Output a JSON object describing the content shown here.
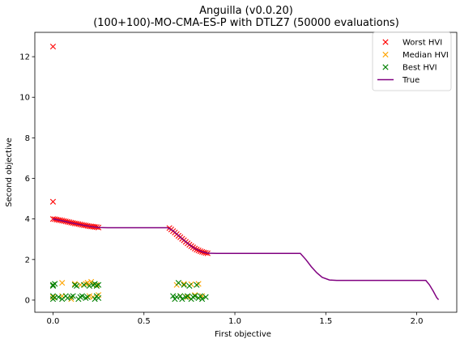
{
  "chart_data": {
    "type": "scatter",
    "title": "Anguilla (v0.0.20)",
    "subtitle": "(100+100)-MO-CMA-ES-P with DTLZ7 (50000 evaluations)",
    "xlabel": "First objective",
    "ylabel": "Second objective",
    "xlim": [
      -0.1,
      2.22
    ],
    "ylim": [
      -0.6,
      13.2
    ],
    "xticks": [
      0.0,
      0.5,
      1.0,
      1.5,
      2.0
    ],
    "xtick_labels": [
      "0.0",
      "0.5",
      "1.0",
      "1.5",
      "2.0"
    ],
    "yticks": [
      0,
      2,
      4,
      6,
      8,
      10,
      12
    ],
    "ytick_labels": [
      "0",
      "2",
      "4",
      "6",
      "8",
      "10",
      "12"
    ],
    "grid": false,
    "legend_position": "top-right",
    "series": [
      {
        "name": "Worst HVI",
        "color": "#ff0000",
        "marker": "x",
        "points": [
          [
            0.0,
            12.5
          ],
          [
            0.0,
            4.85
          ],
          [
            0.0,
            4.0
          ],
          [
            0.01,
            3.99
          ],
          [
            0.02,
            3.97
          ],
          [
            0.03,
            3.95
          ],
          [
            0.04,
            3.94
          ],
          [
            0.05,
            3.92
          ],
          [
            0.06,
            3.9
          ],
          [
            0.07,
            3.88
          ],
          [
            0.08,
            3.86
          ],
          [
            0.09,
            3.84
          ],
          [
            0.1,
            3.82
          ],
          [
            0.11,
            3.8
          ],
          [
            0.12,
            3.78
          ],
          [
            0.13,
            3.77
          ],
          [
            0.14,
            3.75
          ],
          [
            0.15,
            3.73
          ],
          [
            0.16,
            3.71
          ],
          [
            0.17,
            3.69
          ],
          [
            0.18,
            3.68
          ],
          [
            0.19,
            3.66
          ],
          [
            0.2,
            3.64
          ],
          [
            0.21,
            3.63
          ],
          [
            0.22,
            3.62
          ],
          [
            0.23,
            3.61
          ],
          [
            0.24,
            3.6
          ],
          [
            0.25,
            3.58
          ],
          [
            0.64,
            3.55
          ],
          [
            0.65,
            3.48
          ],
          [
            0.66,
            3.4
          ],
          [
            0.67,
            3.33
          ],
          [
            0.68,
            3.25
          ],
          [
            0.69,
            3.17
          ],
          [
            0.7,
            3.1
          ],
          [
            0.71,
            3.02
          ],
          [
            0.72,
            2.95
          ],
          [
            0.73,
            2.87
          ],
          [
            0.74,
            2.8
          ],
          [
            0.75,
            2.73
          ],
          [
            0.76,
            2.66
          ],
          [
            0.77,
            2.6
          ],
          [
            0.78,
            2.54
          ],
          [
            0.79,
            2.49
          ],
          [
            0.8,
            2.45
          ],
          [
            0.81,
            2.41
          ],
          [
            0.82,
            2.38
          ],
          [
            0.83,
            2.35
          ],
          [
            0.84,
            2.33
          ],
          [
            0.85,
            2.31
          ]
        ]
      },
      {
        "name": "Median HVI",
        "color": "#ffa500",
        "marker": "x",
        "points": [
          [
            0.0,
            0.75
          ],
          [
            0.0,
            0.15
          ],
          [
            0.05,
            0.85
          ],
          [
            0.05,
            0.2
          ],
          [
            0.1,
            0.05
          ],
          [
            0.12,
            0.8
          ],
          [
            0.15,
            0.75
          ],
          [
            0.18,
            0.8
          ],
          [
            0.19,
            0.85
          ],
          [
            0.2,
            0.2
          ],
          [
            0.21,
            0.9
          ],
          [
            0.22,
            0.15
          ],
          [
            0.24,
            0.75
          ],
          [
            0.25,
            0.25
          ],
          [
            0.68,
            0.75
          ],
          [
            0.7,
            0.2
          ],
          [
            0.72,
            0.8
          ],
          [
            0.74,
            0.15
          ],
          [
            0.76,
            0.78
          ],
          [
            0.78,
            0.25
          ],
          [
            0.8,
            0.8
          ],
          [
            0.82,
            0.2
          ]
        ]
      },
      {
        "name": "Best HVI",
        "color": "#008000",
        "marker": "x",
        "points": [
          [
            0.0,
            0.7
          ],
          [
            0.0,
            0.75
          ],
          [
            0.01,
            0.8
          ],
          [
            0.0,
            0.2
          ],
          [
            0.0,
            0.05
          ],
          [
            0.01,
            0.12
          ],
          [
            0.03,
            0.15
          ],
          [
            0.05,
            0.05
          ],
          [
            0.07,
            0.2
          ],
          [
            0.08,
            0.1
          ],
          [
            0.1,
            0.15
          ],
          [
            0.11,
            0.2
          ],
          [
            0.12,
            0.75
          ],
          [
            0.13,
            0.7
          ],
          [
            0.14,
            0.05
          ],
          [
            0.15,
            0.15
          ],
          [
            0.16,
            0.2
          ],
          [
            0.17,
            0.75
          ],
          [
            0.18,
            0.1
          ],
          [
            0.19,
            0.15
          ],
          [
            0.2,
            0.7
          ],
          [
            0.22,
            0.75
          ],
          [
            0.23,
            0.05
          ],
          [
            0.23,
            0.8
          ],
          [
            0.24,
            0.2
          ],
          [
            0.24,
            0.7
          ],
          [
            0.25,
            0.75
          ],
          [
            0.25,
            0.1
          ],
          [
            0.66,
            0.2
          ],
          [
            0.67,
            0.05
          ],
          [
            0.68,
            0.15
          ],
          [
            0.69,
            0.85
          ],
          [
            0.7,
            0.2
          ],
          [
            0.71,
            0.05
          ],
          [
            0.72,
            0.75
          ],
          [
            0.73,
            0.15
          ],
          [
            0.74,
            0.2
          ],
          [
            0.75,
            0.7
          ],
          [
            0.76,
            0.05
          ],
          [
            0.77,
            0.15
          ],
          [
            0.78,
            0.2
          ],
          [
            0.79,
            0.75
          ],
          [
            0.8,
            0.1
          ],
          [
            0.81,
            0.2
          ],
          [
            0.82,
            0.05
          ],
          [
            0.84,
            0.15
          ]
        ]
      },
      {
        "name": "True",
        "color": "#800080",
        "marker": "line",
        "points": [
          [
            0.0,
            4.0
          ],
          [
            0.05,
            3.91
          ],
          [
            0.1,
            3.81
          ],
          [
            0.15,
            3.72
          ],
          [
            0.2,
            3.64
          ],
          [
            0.25,
            3.58
          ],
          [
            0.3,
            3.57
          ],
          [
            0.4,
            3.57
          ],
          [
            0.5,
            3.57
          ],
          [
            0.6,
            3.57
          ],
          [
            0.63,
            3.57
          ],
          [
            0.66,
            3.42
          ],
          [
            0.7,
            3.1
          ],
          [
            0.74,
            2.8
          ],
          [
            0.78,
            2.54
          ],
          [
            0.82,
            2.38
          ],
          [
            0.85,
            2.31
          ],
          [
            0.9,
            2.3
          ],
          [
            1.0,
            2.3
          ],
          [
            1.2,
            2.3
          ],
          [
            1.36,
            2.3
          ],
          [
            1.39,
            2.0
          ],
          [
            1.42,
            1.65
          ],
          [
            1.45,
            1.35
          ],
          [
            1.48,
            1.12
          ],
          [
            1.52,
            0.99
          ],
          [
            1.56,
            0.97
          ],
          [
            1.7,
            0.97
          ],
          [
            1.9,
            0.97
          ],
          [
            2.05,
            0.97
          ],
          [
            2.07,
            0.75
          ],
          [
            2.09,
            0.45
          ],
          [
            2.11,
            0.12
          ],
          [
            2.12,
            0.02
          ]
        ]
      }
    ]
  }
}
